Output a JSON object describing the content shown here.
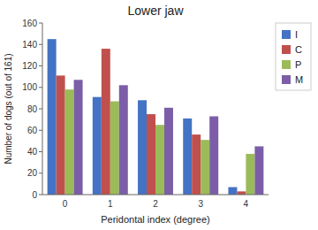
{
  "chart_data": {
    "type": "bar",
    "title": "Lower jaw",
    "xlabel": "Peridontal index (degree)",
    "ylabel": "Number of dogs (out of 161)",
    "categories": [
      "0",
      "1",
      "2",
      "3",
      "4"
    ],
    "series": [
      {
        "name": "I",
        "color": "#4472C4",
        "values": [
          145,
          91,
          88,
          71,
          7
        ]
      },
      {
        "name": "C",
        "color": "#C0504D",
        "values": [
          111,
          136,
          75,
          56,
          3
        ]
      },
      {
        "name": "P",
        "color": "#9BBB59",
        "values": [
          98,
          87,
          65,
          51,
          38
        ]
      },
      {
        "name": "M",
        "color": "#7B5EA7",
        "values": [
          107,
          102,
          81,
          73,
          45
        ]
      }
    ],
    "ylim": [
      0,
      160
    ],
    "yticks": [
      0,
      20,
      40,
      60,
      80,
      100,
      120,
      140,
      160
    ],
    "grid": false,
    "legend": "right"
  }
}
